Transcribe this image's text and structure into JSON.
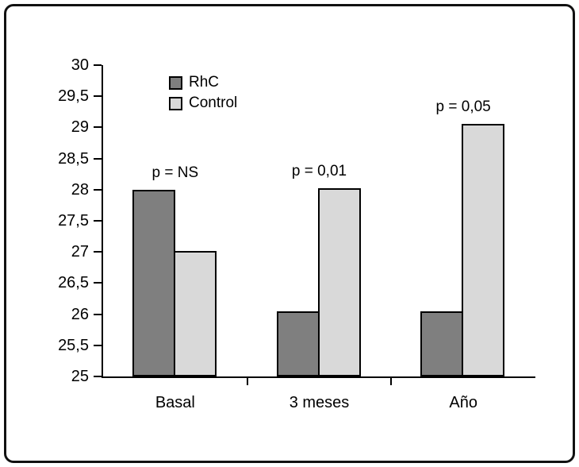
{
  "chart_data": {
    "type": "bar",
    "title": "",
    "xlabel": "",
    "ylabel": "",
    "categories": [
      "Basal",
      "3 meses",
      "Año"
    ],
    "series": [
      {
        "name": "RhC",
        "color": "#7f7f7f",
        "values": [
          28.0,
          26.05,
          26.05
        ]
      },
      {
        "name": "Control",
        "color": "#d9d9d9",
        "values": [
          27.02,
          28.02,
          29.05
        ]
      }
    ],
    "annotations": [
      {
        "category": "Basal",
        "text": "p = NS"
      },
      {
        "category": "3 meses",
        "text": "p = 0,01"
      },
      {
        "category": "Año",
        "text": "p = 0,05"
      }
    ],
    "y_axis": {
      "min": 25,
      "max": 30,
      "tick_step": 0.5,
      "tick_labels": [
        "25",
        "25,5",
        "26",
        "26,5",
        "27",
        "27,5",
        "28",
        "28,5",
        "29",
        "29,5",
        "30"
      ]
    },
    "legend": {
      "position": "top-inside",
      "entries": [
        "RhC",
        "Control"
      ]
    },
    "grid": false,
    "axis_color": "#000000",
    "background_color": "#ffffff"
  }
}
